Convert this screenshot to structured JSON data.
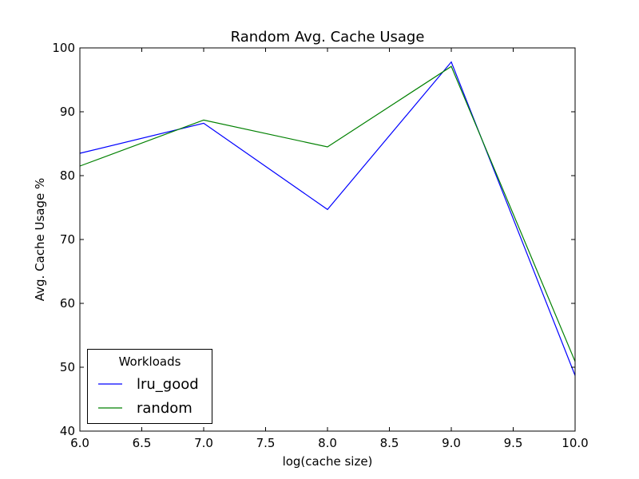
{
  "chart_data": {
    "type": "line",
    "title": "Random Avg. Cache Usage",
    "xlabel": "log(cache size)",
    "ylabel": "Avg. Cache Usage %",
    "xlim": [
      6.0,
      10.0
    ],
    "ylim": [
      40,
      100
    ],
    "x_ticks": [
      "6.0",
      "6.5",
      "7.0",
      "7.5",
      "8.0",
      "8.5",
      "9.0",
      "9.5",
      "10.0"
    ],
    "y_ticks": [
      "40",
      "50",
      "60",
      "70",
      "80",
      "90",
      "100"
    ],
    "x": [
      6,
      7,
      8,
      9,
      10
    ],
    "series": [
      {
        "name": "lru_good",
        "color": "#0000ff",
        "values": [
          83.5,
          88.2,
          74.7,
          97.8,
          48.7
        ]
      },
      {
        "name": "random",
        "color": "#008000",
        "values": [
          81.5,
          88.7,
          84.5,
          97.1,
          50.9
        ]
      }
    ],
    "legend": {
      "title": "Workloads",
      "position": "lower-left"
    },
    "grid": false
  }
}
